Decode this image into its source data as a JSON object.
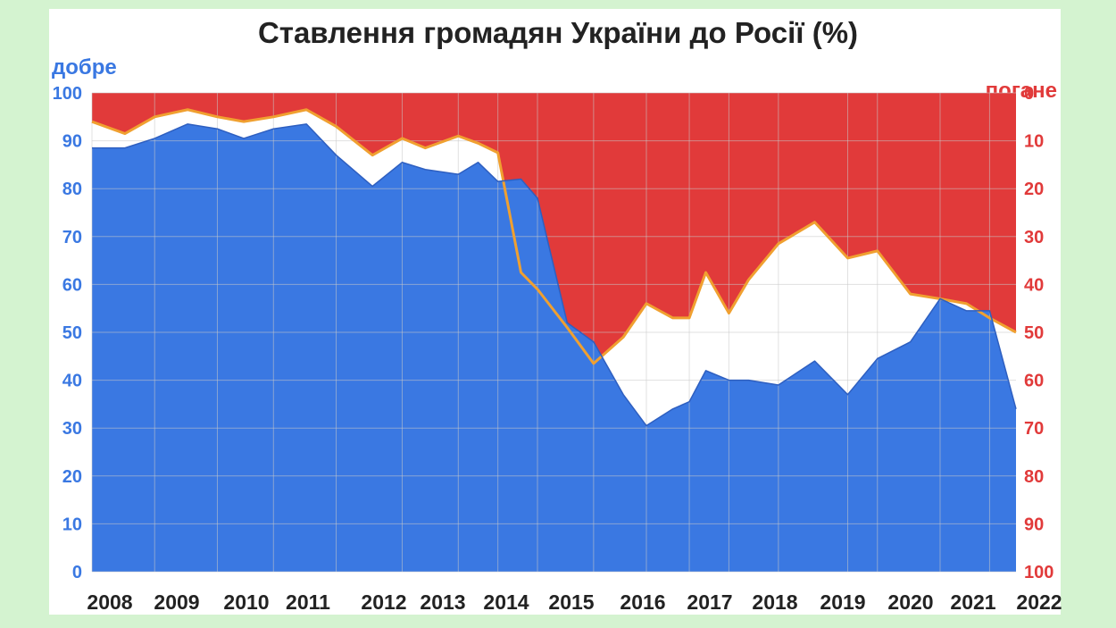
{
  "chart_data": {
    "type": "area",
    "title": "Ставлення громадян України до Росії (%)",
    "left_axis_label": "добре",
    "right_axis_label": "погане",
    "left_ylim": [
      0,
      100
    ],
    "right_ylim": [
      100,
      0
    ],
    "left_ticks": [
      "0",
      "10",
      "20",
      "30",
      "40",
      "50",
      "60",
      "70",
      "80",
      "90",
      "100"
    ],
    "right_ticks": [
      "0",
      "10",
      "20",
      "30",
      "40",
      "50",
      "60",
      "70",
      "80",
      "90",
      "100"
    ],
    "x_ticks": [
      "2008",
      "2009",
      "2010",
      "2011",
      "2012",
      "2013",
      "2014",
      "2015",
      "2016",
      "2017",
      "2018",
      "2019",
      "2020",
      "2021",
      "2022"
    ],
    "grid": true,
    "colors": {
      "good": "#3a78e2",
      "bad": "#e13a3a",
      "line": "#f0a030",
      "left_axis": "#3a78e2",
      "right_axis": "#e13a3a"
    },
    "series": [
      {
        "name": "добре",
        "x": [
          2008.0,
          2008.5,
          2008.95,
          2009.45,
          2009.9,
          2010.3,
          2010.75,
          2011.25,
          2011.7,
          2012.25,
          2012.7,
          2013.05,
          2013.55,
          2013.85,
          2014.15,
          2014.5,
          2014.75,
          2015.2,
          2015.6,
          2016.05,
          2016.4,
          2016.8,
          2017.05,
          2017.3,
          2017.65,
          2017.95,
          2018.4,
          2018.95,
          2019.45,
          2019.9,
          2020.4,
          2020.85,
          2021.25,
          2021.6,
          2022.0
        ],
        "values": [
          88.5,
          88.5,
          90.5,
          93.5,
          92.5,
          90.5,
          92.5,
          93.5,
          87,
          80.5,
          85.5,
          84,
          83,
          85.5,
          81.5,
          82,
          78,
          52,
          48,
          37,
          30.5,
          34,
          35.5,
          42,
          40,
          40,
          39,
          44,
          37,
          44.5,
          48,
          57,
          54.5,
          54.5,
          34
        ]
      },
      {
        "name": "погане",
        "x": [
          2008.0,
          2008.5,
          2008.95,
          2009.45,
          2009.9,
          2010.3,
          2010.75,
          2011.25,
          2011.7,
          2012.25,
          2012.7,
          2013.05,
          2013.55,
          2013.85,
          2014.15,
          2014.5,
          2014.75,
          2015.2,
          2015.6,
          2016.05,
          2016.4,
          2016.8,
          2017.05,
          2017.3,
          2017.65,
          2017.95,
          2018.4,
          2018.95,
          2019.45,
          2019.9,
          2020.4,
          2020.85,
          2021.25,
          2021.6,
          2022.0
        ],
        "values": [
          6,
          8.5,
          5,
          3.5,
          5,
          6,
          5,
          3.5,
          7,
          13,
          9.5,
          11.5,
          9,
          10.5,
          12.5,
          37.5,
          41,
          49,
          56.5,
          51,
          44,
          47,
          47,
          37.5,
          46,
          39,
          31.5,
          27,
          34.5,
          33,
          42,
          43,
          44,
          47,
          50
        ]
      }
    ]
  }
}
